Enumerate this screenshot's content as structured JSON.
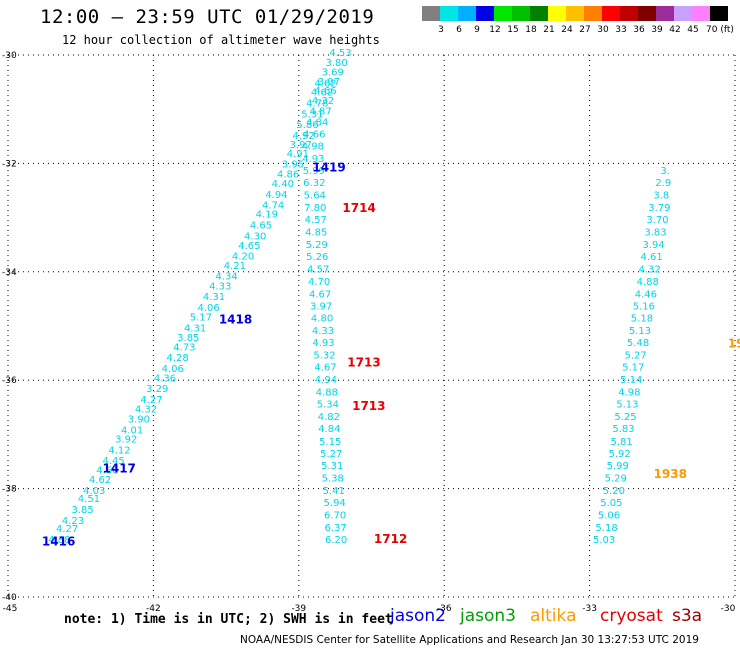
{
  "title": "12:00 – 23:59 UTC 01/29/2019",
  "subtitle": "12 hour collection of altimeter wave heights",
  "note": "note: 1) Time is in UTC; 2) SWH is in feet",
  "credit": "NOAA/NESDIS Center for Satellite Applications and Research   Jan 30 13:27:53 UTC 2019",
  "scale": {
    "colors": [
      "#808080",
      "#00e6e6",
      "#00b0ff",
      "#0000e6",
      "#00e600",
      "#00c000",
      "#008000",
      "#ffff00",
      "#ffc000",
      "#ff8000",
      "#ff0000",
      "#c00000",
      "#800000",
      "#9c2c9c",
      "#c8a0ff",
      "#ff80ff",
      "#000000"
    ],
    "labels": [
      "3",
      "6",
      "9",
      "12",
      "15",
      "18",
      "21",
      "24",
      "27",
      "30",
      "33",
      "36",
      "39",
      "42",
      "45",
      "70 (ft)"
    ]
  },
  "satellites": [
    {
      "name": "jason2",
      "color": "#0000e6"
    },
    {
      "name": "jason3",
      "color": "#00a000"
    },
    {
      "name": "altika",
      "color": "#ff9900"
    },
    {
      "name": "cryosat",
      "color": "#e60000"
    },
    {
      "name": "s3a",
      "color": "#a00000"
    }
  ],
  "chart_data": {
    "type": "scatter",
    "title": "12:00 – 23:59 UTC 01/29/2019",
    "subtitle": "12 hour collection of altimeter wave heights",
    "x_ticks": [
      "-45",
      "-42",
      "-39",
      "-36",
      "-33",
      "-30"
    ],
    "y_ticks": [
      "-30",
      "-32",
      "-34",
      "-36",
      "-38",
      "-40"
    ],
    "xlim": [
      -45,
      -30
    ],
    "ylim": [
      -40,
      -30
    ],
    "grid": true,
    "value_color": "#00d5e8",
    "tracks": [
      {
        "points": [
          {
            "x": -43.94,
            "y": -39.0,
            "v": "4.88"
          },
          {
            "x": -43.78,
            "y": -38.8,
            "v": "4.27"
          },
          {
            "x": -43.66,
            "y": -38.65,
            "v": "4.23"
          },
          {
            "x": -43.46,
            "y": -38.45,
            "v": "3.85"
          },
          {
            "x": -43.33,
            "y": -38.25,
            "v": "4.51"
          },
          {
            "x": -43.22,
            "y": -38.1,
            "v": "4.03"
          },
          {
            "x": -43.1,
            "y": -37.9,
            "v": "4.62"
          },
          {
            "x": -42.95,
            "y": -37.72,
            "v": "4.60"
          },
          {
            "x": -42.82,
            "y": -37.55,
            "v": "4.45"
          },
          {
            "x": -42.7,
            "y": -37.35,
            "v": "4.12"
          },
          {
            "x": -42.56,
            "y": -37.15,
            "v": "3.92"
          },
          {
            "x": -42.44,
            "y": -36.98,
            "v": "4.01"
          },
          {
            "x": -42.3,
            "y": -36.78,
            "v": "3.90"
          },
          {
            "x": -42.15,
            "y": -36.6,
            "v": "4.32"
          },
          {
            "x": -42.04,
            "y": -36.42,
            "v": "4.27"
          },
          {
            "x": -41.92,
            "y": -36.22,
            "v": "3.29"
          },
          {
            "x": -41.76,
            "y": -36.02,
            "v": "4.36"
          },
          {
            "x": -41.6,
            "y": -35.85,
            "v": "4.06"
          },
          {
            "x": -41.5,
            "y": -35.65,
            "v": "4.28"
          },
          {
            "x": -41.36,
            "y": -35.45,
            "v": "4.73"
          },
          {
            "x": -41.28,
            "y": -35.28,
            "v": "3.85"
          },
          {
            "x": -41.14,
            "y": -35.1,
            "v": "4.31"
          },
          {
            "x": -41.02,
            "y": -34.9,
            "v": "5.17"
          },
          {
            "x": -40.86,
            "y": -34.72,
            "v": "4.06"
          },
          {
            "x": -40.75,
            "y": -34.52,
            "v": "4.31"
          },
          {
            "x": -40.62,
            "y": -34.33,
            "v": "4.33"
          },
          {
            "x": -40.49,
            "y": -34.14,
            "v": "4.34"
          },
          {
            "x": -40.32,
            "y": -33.95,
            "v": "4.21"
          },
          {
            "x": -40.15,
            "y": -33.77,
            "v": "4.20"
          },
          {
            "x": -40.02,
            "y": -33.58,
            "v": "4.65"
          },
          {
            "x": -39.9,
            "y": -33.4,
            "v": "4.30"
          },
          {
            "x": -39.78,
            "y": -33.2,
            "v": "4.65"
          },
          {
            "x": -39.66,
            "y": -33.0,
            "v": "4.19"
          },
          {
            "x": -39.53,
            "y": -32.83,
            "v": "4.74"
          },
          {
            "x": -39.46,
            "y": -32.64,
            "v": "4.94"
          },
          {
            "x": -39.33,
            "y": -32.44,
            "v": "4.40"
          },
          {
            "x": -39.22,
            "y": -32.26,
            "v": "4.86"
          },
          {
            "x": -39.12,
            "y": -32.08,
            "v": "3.95"
          },
          {
            "x": -39.02,
            "y": -31.88,
            "v": "4.91"
          },
          {
            "x": -38.96,
            "y": -31.72,
            "v": "3.97"
          },
          {
            "x": -38.9,
            "y": -31.55,
            "v": "4.92"
          },
          {
            "x": -38.82,
            "y": -31.35,
            "v": "5.86"
          },
          {
            "x": -38.72,
            "y": -31.15,
            "v": "5.31"
          },
          {
            "x": -38.62,
            "y": -30.95,
            "v": "4.78"
          },
          {
            "x": -38.52,
            "y": -30.75,
            "v": "4.62"
          },
          {
            "x": -38.45,
            "y": -30.58,
            "v": "4.62"
          }
        ]
      },
      {
        "points": [
          {
            "x": -38.23,
            "y": -39.0,
            "v": "6.20"
          },
          {
            "x": -38.24,
            "y": -38.78,
            "v": "6.37"
          },
          {
            "x": -38.25,
            "y": -38.55,
            "v": "6.70"
          },
          {
            "x": -38.26,
            "y": -38.32,
            "v": "5.94"
          },
          {
            "x": -38.28,
            "y": -38.1,
            "v": "5.41"
          },
          {
            "x": -38.3,
            "y": -37.87,
            "v": "5.38"
          },
          {
            "x": -38.31,
            "y": -37.64,
            "v": "5.31"
          },
          {
            "x": -38.33,
            "y": -37.42,
            "v": "5.27"
          },
          {
            "x": -38.35,
            "y": -37.2,
            "v": "5.15"
          },
          {
            "x": -38.37,
            "y": -36.96,
            "v": "4.84"
          },
          {
            "x": -38.38,
            "y": -36.73,
            "v": "4.82"
          },
          {
            "x": -38.4,
            "y": -36.5,
            "v": "5.34"
          },
          {
            "x": -38.42,
            "y": -36.28,
            "v": "4.88"
          },
          {
            "x": -38.44,
            "y": -36.05,
            "v": "4.94"
          },
          {
            "x": -38.45,
            "y": -35.82,
            "v": "4.67"
          },
          {
            "x": -38.47,
            "y": -35.6,
            "v": "5.32"
          },
          {
            "x": -38.49,
            "y": -35.37,
            "v": "4.93"
          },
          {
            "x": -38.5,
            "y": -35.15,
            "v": "4.33"
          },
          {
            "x": -38.52,
            "y": -34.92,
            "v": "4.80"
          },
          {
            "x": -38.54,
            "y": -34.7,
            "v": "3.97"
          },
          {
            "x": -38.56,
            "y": -34.47,
            "v": "4.67"
          },
          {
            "x": -38.58,
            "y": -34.24,
            "v": "4.70"
          },
          {
            "x": -38.6,
            "y": -34.01,
            "v": "4.57"
          },
          {
            "x": -38.62,
            "y": -33.78,
            "v": "5.26"
          },
          {
            "x": -38.63,
            "y": -33.56,
            "v": "5.29"
          },
          {
            "x": -38.64,
            "y": -33.33,
            "v": "4.85"
          },
          {
            "x": -38.65,
            "y": -33.1,
            "v": "4.57"
          },
          {
            "x": -38.66,
            "y": -32.88,
            "v": "7.80"
          },
          {
            "x": -38.67,
            "y": -32.65,
            "v": "5.64"
          },
          {
            "x": -38.68,
            "y": -32.42,
            "v": "6.32"
          },
          {
            "x": -38.69,
            "y": -32.2,
            "v": "5.99"
          },
          {
            "x": -38.7,
            "y": -31.97,
            "v": "4.93"
          },
          {
            "x": -38.71,
            "y": -31.74,
            "v": "4.98"
          },
          {
            "x": -38.68,
            "y": -31.52,
            "v": "4.66"
          },
          {
            "x": -38.62,
            "y": -31.3,
            "v": "4.84"
          },
          {
            "x": -38.55,
            "y": -31.1,
            "v": "4.87"
          },
          {
            "x": -38.5,
            "y": -30.9,
            "v": "4.32"
          },
          {
            "x": -38.45,
            "y": -30.72,
            "v": "4.66"
          },
          {
            "x": -38.38,
            "y": -30.55,
            "v": "3.97"
          },
          {
            "x": -38.3,
            "y": -30.38,
            "v": "3.69"
          },
          {
            "x": -38.22,
            "y": -30.2,
            "v": "3.80"
          },
          {
            "x": -38.14,
            "y": -30.02,
            "v": "4.53"
          }
        ]
      },
      {
        "points": [
          {
            "x": -32.7,
            "y": -39.0,
            "v": "5.03"
          },
          {
            "x": -32.65,
            "y": -38.78,
            "v": "5.18"
          },
          {
            "x": -32.6,
            "y": -38.55,
            "v": "5.06"
          },
          {
            "x": -32.55,
            "y": -38.32,
            "v": "5.05"
          },
          {
            "x": -32.5,
            "y": -38.1,
            "v": "5.20"
          },
          {
            "x": -32.46,
            "y": -37.87,
            "v": "5.29"
          },
          {
            "x": -32.42,
            "y": -37.64,
            "v": "5.99"
          },
          {
            "x": -32.38,
            "y": -37.42,
            "v": "5.92"
          },
          {
            "x": -32.34,
            "y": -37.2,
            "v": "5.81"
          },
          {
            "x": -32.3,
            "y": -36.96,
            "v": "5.83"
          },
          {
            "x": -32.26,
            "y": -36.73,
            "v": "5.25"
          },
          {
            "x": -32.22,
            "y": -36.5,
            "v": "5.13"
          },
          {
            "x": -32.18,
            "y": -36.28,
            "v": "4.98"
          },
          {
            "x": -32.14,
            "y": -36.05,
            "v": "5.14"
          },
          {
            "x": -32.1,
            "y": -35.82,
            "v": "5.17"
          },
          {
            "x": -32.05,
            "y": -35.6,
            "v": "5.27"
          },
          {
            "x": -32.0,
            "y": -35.37,
            "v": "5.48"
          },
          {
            "x": -31.96,
            "y": -35.15,
            "v": "5.13"
          },
          {
            "x": -31.92,
            "y": -34.92,
            "v": "5.18"
          },
          {
            "x": -31.88,
            "y": -34.7,
            "v": "5.16"
          },
          {
            "x": -31.84,
            "y": -34.47,
            "v": "4.46"
          },
          {
            "x": -31.8,
            "y": -34.24,
            "v": "4.88"
          },
          {
            "x": -31.76,
            "y": -34.01,
            "v": "4.32"
          },
          {
            "x": -31.72,
            "y": -33.78,
            "v": "4.61"
          },
          {
            "x": -31.68,
            "y": -33.56,
            "v": "3.94"
          },
          {
            "x": -31.64,
            "y": -33.33,
            "v": "3.83"
          },
          {
            "x": -31.6,
            "y": -33.1,
            "v": "3.70"
          },
          {
            "x": -31.56,
            "y": -32.88,
            "v": "3.79"
          },
          {
            "x": -31.52,
            "y": -32.65,
            "v": "3.8"
          },
          {
            "x": -31.48,
            "y": -32.42,
            "v": "2.9"
          },
          {
            "x": -31.44,
            "y": -32.2,
            "v": "3."
          }
        ]
      }
    ],
    "pass_times": [
      {
        "x": -44.3,
        "y": -39.05,
        "label": "1416",
        "satellite": "jason2"
      },
      {
        "x": -43.05,
        "y": -37.7,
        "label": "1417",
        "satellite": "jason2"
      },
      {
        "x": -40.65,
        "y": -34.95,
        "label": "1418",
        "satellite": "jason2"
      },
      {
        "x": -38.72,
        "y": -32.15,
        "label": "1419",
        "satellite": "jason2"
      },
      {
        "x": -38.1,
        "y": -32.9,
        "label": "1714",
        "satellite": "cryosat"
      },
      {
        "x": -38.0,
        "y": -35.75,
        "label": "1713",
        "satellite": "cryosat"
      },
      {
        "x": -37.9,
        "y": -36.55,
        "label": "1713",
        "satellite": "cryosat"
      },
      {
        "x": -37.45,
        "y": -39.0,
        "label": "1712",
        "satellite": "cryosat"
      },
      {
        "x": -31.68,
        "y": -37.8,
        "label": "1938",
        "satellite": "altika"
      },
      {
        "x": -30.15,
        "y": -35.4,
        "label": "19",
        "satellite": "altika"
      }
    ]
  }
}
